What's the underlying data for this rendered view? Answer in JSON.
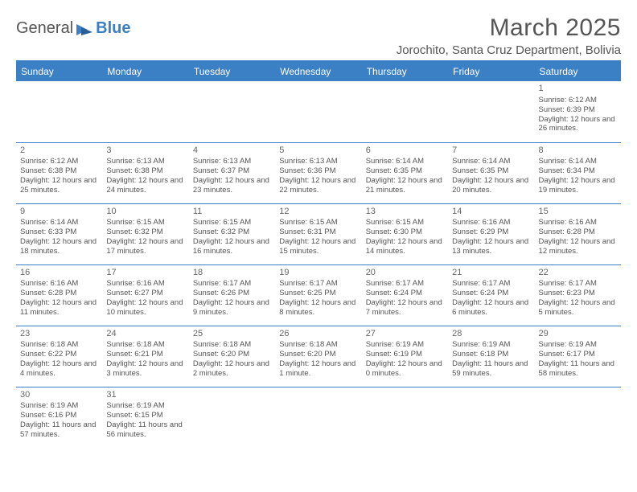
{
  "logo": {
    "text1": "General",
    "text2": "Blue"
  },
  "header": {
    "month_title": "March 2025",
    "location": "Jorochito, Santa Cruz Department, Bolivia"
  },
  "colors": {
    "accent": "#3b7fc4",
    "text": "#555555",
    "bg": "#ffffff"
  },
  "calendar": {
    "day_headers": [
      "Sunday",
      "Monday",
      "Tuesday",
      "Wednesday",
      "Thursday",
      "Friday",
      "Saturday"
    ],
    "weeks": [
      [
        null,
        null,
        null,
        null,
        null,
        null,
        {
          "n": "1",
          "sr": "Sunrise: 6:12 AM",
          "ss": "Sunset: 6:39 PM",
          "dl": "Daylight: 12 hours and 26 minutes."
        }
      ],
      [
        {
          "n": "2",
          "sr": "Sunrise: 6:12 AM",
          "ss": "Sunset: 6:38 PM",
          "dl": "Daylight: 12 hours and 25 minutes."
        },
        {
          "n": "3",
          "sr": "Sunrise: 6:13 AM",
          "ss": "Sunset: 6:38 PM",
          "dl": "Daylight: 12 hours and 24 minutes."
        },
        {
          "n": "4",
          "sr": "Sunrise: 6:13 AM",
          "ss": "Sunset: 6:37 PM",
          "dl": "Daylight: 12 hours and 23 minutes."
        },
        {
          "n": "5",
          "sr": "Sunrise: 6:13 AM",
          "ss": "Sunset: 6:36 PM",
          "dl": "Daylight: 12 hours and 22 minutes."
        },
        {
          "n": "6",
          "sr": "Sunrise: 6:14 AM",
          "ss": "Sunset: 6:35 PM",
          "dl": "Daylight: 12 hours and 21 minutes."
        },
        {
          "n": "7",
          "sr": "Sunrise: 6:14 AM",
          "ss": "Sunset: 6:35 PM",
          "dl": "Daylight: 12 hours and 20 minutes."
        },
        {
          "n": "8",
          "sr": "Sunrise: 6:14 AM",
          "ss": "Sunset: 6:34 PM",
          "dl": "Daylight: 12 hours and 19 minutes."
        }
      ],
      [
        {
          "n": "9",
          "sr": "Sunrise: 6:14 AM",
          "ss": "Sunset: 6:33 PM",
          "dl": "Daylight: 12 hours and 18 minutes."
        },
        {
          "n": "10",
          "sr": "Sunrise: 6:15 AM",
          "ss": "Sunset: 6:32 PM",
          "dl": "Daylight: 12 hours and 17 minutes."
        },
        {
          "n": "11",
          "sr": "Sunrise: 6:15 AM",
          "ss": "Sunset: 6:32 PM",
          "dl": "Daylight: 12 hours and 16 minutes."
        },
        {
          "n": "12",
          "sr": "Sunrise: 6:15 AM",
          "ss": "Sunset: 6:31 PM",
          "dl": "Daylight: 12 hours and 15 minutes."
        },
        {
          "n": "13",
          "sr": "Sunrise: 6:15 AM",
          "ss": "Sunset: 6:30 PM",
          "dl": "Daylight: 12 hours and 14 minutes."
        },
        {
          "n": "14",
          "sr": "Sunrise: 6:16 AM",
          "ss": "Sunset: 6:29 PM",
          "dl": "Daylight: 12 hours and 13 minutes."
        },
        {
          "n": "15",
          "sr": "Sunrise: 6:16 AM",
          "ss": "Sunset: 6:28 PM",
          "dl": "Daylight: 12 hours and 12 minutes."
        }
      ],
      [
        {
          "n": "16",
          "sr": "Sunrise: 6:16 AM",
          "ss": "Sunset: 6:28 PM",
          "dl": "Daylight: 12 hours and 11 minutes."
        },
        {
          "n": "17",
          "sr": "Sunrise: 6:16 AM",
          "ss": "Sunset: 6:27 PM",
          "dl": "Daylight: 12 hours and 10 minutes."
        },
        {
          "n": "18",
          "sr": "Sunrise: 6:17 AM",
          "ss": "Sunset: 6:26 PM",
          "dl": "Daylight: 12 hours and 9 minutes."
        },
        {
          "n": "19",
          "sr": "Sunrise: 6:17 AM",
          "ss": "Sunset: 6:25 PM",
          "dl": "Daylight: 12 hours and 8 minutes."
        },
        {
          "n": "20",
          "sr": "Sunrise: 6:17 AM",
          "ss": "Sunset: 6:24 PM",
          "dl": "Daylight: 12 hours and 7 minutes."
        },
        {
          "n": "21",
          "sr": "Sunrise: 6:17 AM",
          "ss": "Sunset: 6:24 PM",
          "dl": "Daylight: 12 hours and 6 minutes."
        },
        {
          "n": "22",
          "sr": "Sunrise: 6:17 AM",
          "ss": "Sunset: 6:23 PM",
          "dl": "Daylight: 12 hours and 5 minutes."
        }
      ],
      [
        {
          "n": "23",
          "sr": "Sunrise: 6:18 AM",
          "ss": "Sunset: 6:22 PM",
          "dl": "Daylight: 12 hours and 4 minutes."
        },
        {
          "n": "24",
          "sr": "Sunrise: 6:18 AM",
          "ss": "Sunset: 6:21 PM",
          "dl": "Daylight: 12 hours and 3 minutes."
        },
        {
          "n": "25",
          "sr": "Sunrise: 6:18 AM",
          "ss": "Sunset: 6:20 PM",
          "dl": "Daylight: 12 hours and 2 minutes."
        },
        {
          "n": "26",
          "sr": "Sunrise: 6:18 AM",
          "ss": "Sunset: 6:20 PM",
          "dl": "Daylight: 12 hours and 1 minute."
        },
        {
          "n": "27",
          "sr": "Sunrise: 6:19 AM",
          "ss": "Sunset: 6:19 PM",
          "dl": "Daylight: 12 hours and 0 minutes."
        },
        {
          "n": "28",
          "sr": "Sunrise: 6:19 AM",
          "ss": "Sunset: 6:18 PM",
          "dl": "Daylight: 11 hours and 59 minutes."
        },
        {
          "n": "29",
          "sr": "Sunrise: 6:19 AM",
          "ss": "Sunset: 6:17 PM",
          "dl": "Daylight: 11 hours and 58 minutes."
        }
      ],
      [
        {
          "n": "30",
          "sr": "Sunrise: 6:19 AM",
          "ss": "Sunset: 6:16 PM",
          "dl": "Daylight: 11 hours and 57 minutes."
        },
        {
          "n": "31",
          "sr": "Sunrise: 6:19 AM",
          "ss": "Sunset: 6:15 PM",
          "dl": "Daylight: 11 hours and 56 minutes."
        },
        null,
        null,
        null,
        null,
        null
      ]
    ]
  }
}
